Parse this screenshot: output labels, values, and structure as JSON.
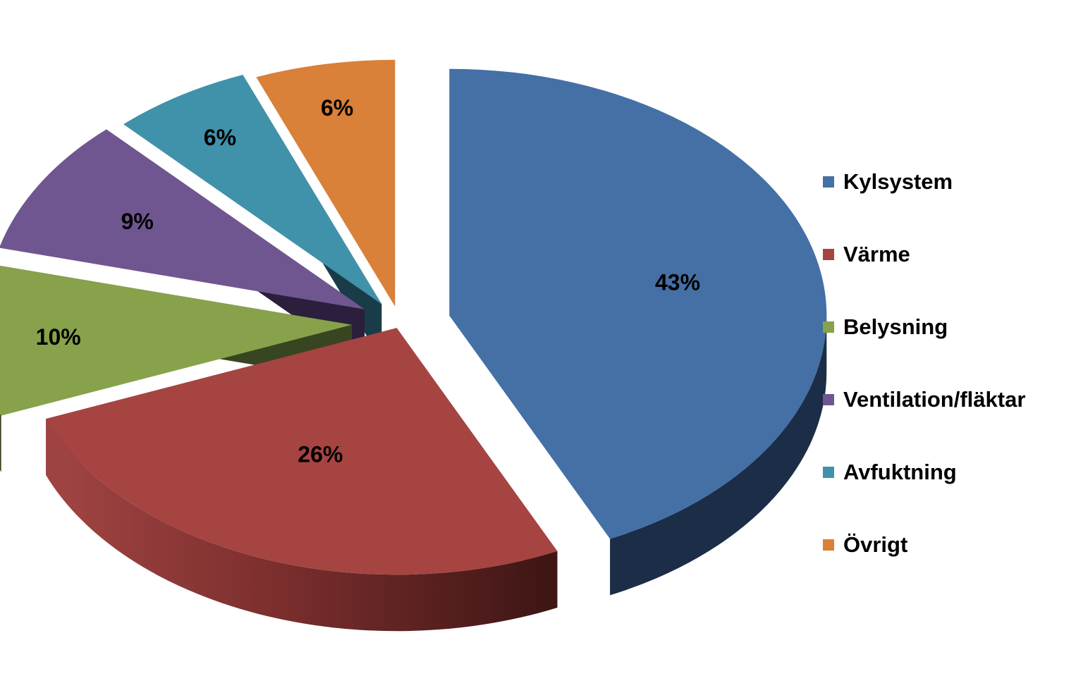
{
  "chart_data": {
    "type": "pie",
    "style": "3d-exploded",
    "legend_position": "right",
    "series": [
      {
        "name": "",
        "values": [
          43,
          26,
          10,
          9,
          6,
          6
        ]
      }
    ],
    "categories": [
      "Kylsystem",
      "Värme",
      "Belysning",
      "Ventilation/fläktar",
      "Avfuktning",
      "Övrigt"
    ],
    "data_labels": [
      "43%",
      "26%",
      "10%",
      "9%",
      "6%",
      "6%"
    ],
    "colors": [
      "#4470A6",
      "#A64442",
      "#87A24B",
      "#6F5690",
      "#3F92AA",
      "#D98039"
    ],
    "side_colors": [
      "#1B2D47",
      "#5E1F1E",
      "#374620",
      "#2C1F3D",
      "#193D48",
      "#5A3317"
    ]
  }
}
